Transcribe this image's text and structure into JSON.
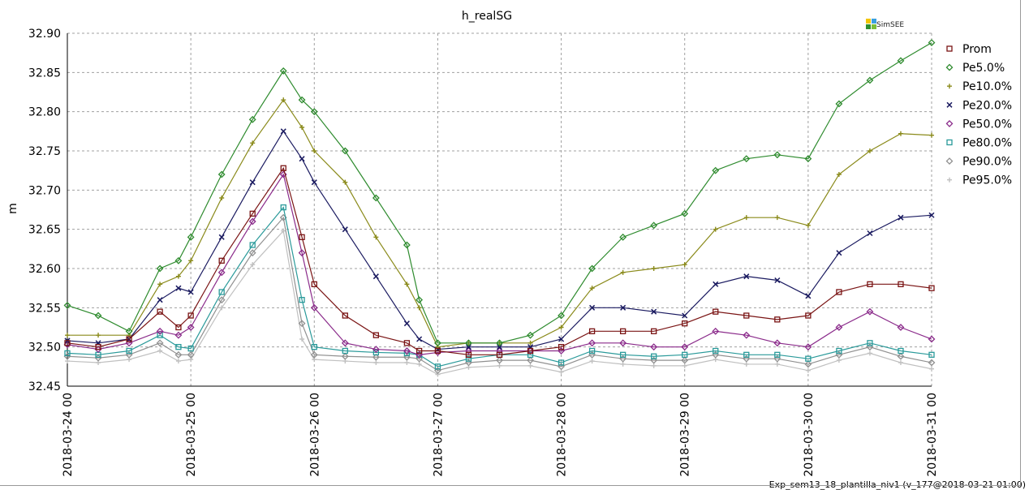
{
  "footer": "Exp_sem13_18_plantilla_niv1 (v_177@2018-03-21 01:00)",
  "logo": {
    "text": "SimSEE",
    "colors": [
      "#f2c500",
      "#3aa0e0",
      "#2f8f2f",
      "#7bbf3a"
    ]
  },
  "chart_data": {
    "type": "line",
    "title": "h_realSG",
    "ylabel": "m",
    "xlabel": "",
    "ylim": [
      32.45,
      32.9
    ],
    "yticks": [
      "32.45",
      "32.50",
      "32.55",
      "32.60",
      "32.65",
      "32.70",
      "32.75",
      "32.80",
      "32.85",
      "32.90"
    ],
    "xlim": [
      0,
      7
    ],
    "xticks": [
      "2018-03-24 00",
      "2018-03-25 00",
      "2018-03-26 00",
      "2018-03-27 00",
      "2018-03-28 00",
      "2018-03-29 00",
      "2018-03-30 00",
      "2018-03-31 00"
    ],
    "grid": true,
    "legend_position": "right",
    "x": [
      0,
      0.25,
      0.5,
      0.75,
      0.9,
      1.0,
      1.25,
      1.5,
      1.75,
      1.9,
      2.0,
      2.25,
      2.5,
      2.75,
      2.85,
      3.0,
      3.25,
      3.5,
      3.75,
      4.0,
      4.25,
      4.5,
      4.75,
      5.0,
      5.25,
      5.5,
      5.75,
      6.0,
      6.25,
      6.5,
      6.75,
      7.0
    ],
    "series": [
      {
        "name": "Prom",
        "color": "#7a1414",
        "marker": "square",
        "values": [
          32.505,
          32.5,
          32.51,
          32.545,
          32.525,
          32.54,
          32.61,
          32.67,
          32.728,
          32.64,
          32.58,
          32.54,
          32.515,
          32.505,
          32.495,
          32.495,
          32.49,
          32.49,
          32.495,
          32.5,
          32.52,
          32.52,
          32.52,
          32.53,
          32.545,
          32.54,
          32.535,
          32.54,
          32.57,
          32.58,
          32.58,
          32.575
        ]
      },
      {
        "name": "Pe5.0%",
        "color": "#2e8b2e",
        "marker": "diamond",
        "values": [
          32.553,
          32.54,
          32.52,
          32.6,
          32.61,
          32.64,
          32.72,
          32.79,
          32.852,
          32.815,
          32.8,
          32.75,
          32.69,
          32.63,
          32.56,
          32.505,
          32.505,
          32.505,
          32.515,
          32.54,
          32.6,
          32.64,
          32.655,
          32.67,
          32.725,
          32.74,
          32.745,
          32.74,
          32.81,
          32.84,
          32.865,
          32.888
        ]
      },
      {
        "name": "Pe10.0%",
        "color": "#8a8a1a",
        "marker": "plus",
        "values": [
          32.515,
          32.515,
          32.515,
          32.58,
          32.59,
          32.61,
          32.69,
          32.76,
          32.815,
          32.78,
          32.75,
          32.71,
          32.64,
          32.58,
          32.55,
          32.5,
          32.505,
          32.505,
          32.505,
          32.525,
          32.575,
          32.595,
          32.6,
          32.605,
          32.65,
          32.665,
          32.665,
          32.655,
          32.72,
          32.75,
          32.772,
          32.77
        ]
      },
      {
        "name": "Pe20.0%",
        "color": "#1a1a60",
        "marker": "cross",
        "values": [
          32.508,
          32.505,
          32.51,
          32.56,
          32.575,
          32.57,
          32.64,
          32.71,
          32.775,
          32.74,
          32.71,
          32.65,
          32.59,
          32.53,
          32.51,
          32.497,
          32.5,
          32.5,
          32.5,
          32.51,
          32.55,
          32.55,
          32.545,
          32.54,
          32.58,
          32.59,
          32.585,
          32.565,
          32.62,
          32.645,
          32.665,
          32.668
        ]
      },
      {
        "name": "Pe50.0%",
        "color": "#8a2a8a",
        "marker": "diamond",
        "values": [
          32.503,
          32.497,
          32.505,
          32.52,
          32.515,
          32.525,
          32.595,
          32.66,
          32.72,
          32.62,
          32.55,
          32.505,
          32.497,
          32.495,
          32.49,
          32.493,
          32.495,
          32.495,
          32.495,
          32.495,
          32.505,
          32.505,
          32.5,
          32.5,
          32.52,
          32.515,
          32.505,
          32.5,
          32.525,
          32.545,
          32.525,
          32.51
        ]
      },
      {
        "name": "Pe80.0%",
        "color": "#2a9a9a",
        "marker": "square",
        "values": [
          32.492,
          32.49,
          32.495,
          32.515,
          32.5,
          32.498,
          32.57,
          32.63,
          32.678,
          32.56,
          32.5,
          32.495,
          32.493,
          32.492,
          32.49,
          32.475,
          32.485,
          32.49,
          32.49,
          32.48,
          32.495,
          32.49,
          32.488,
          32.49,
          32.495,
          32.49,
          32.49,
          32.485,
          32.495,
          32.505,
          32.495,
          32.49
        ]
      },
      {
        "name": "Pe90.0%",
        "color": "#909090",
        "marker": "diamond",
        "values": [
          32.488,
          32.486,
          32.49,
          32.505,
          32.49,
          32.49,
          32.56,
          32.62,
          32.665,
          32.53,
          32.49,
          32.488,
          32.487,
          32.487,
          32.485,
          32.47,
          32.48,
          32.483,
          32.483,
          32.475,
          32.49,
          32.485,
          32.483,
          32.483,
          32.49,
          32.485,
          32.485,
          32.478,
          32.49,
          32.5,
          32.488,
          32.48
        ]
      },
      {
        "name": "Pe95.0%",
        "color": "#c0c0c0",
        "marker": "plus",
        "values": [
          32.482,
          32.48,
          32.484,
          32.495,
          32.482,
          32.484,
          32.55,
          32.605,
          32.648,
          32.51,
          32.484,
          32.482,
          32.48,
          32.48,
          32.478,
          32.465,
          32.474,
          32.476,
          32.476,
          32.468,
          32.482,
          32.478,
          32.476,
          32.476,
          32.484,
          32.478,
          32.478,
          32.47,
          32.483,
          32.492,
          32.48,
          32.472
        ]
      }
    ]
  }
}
